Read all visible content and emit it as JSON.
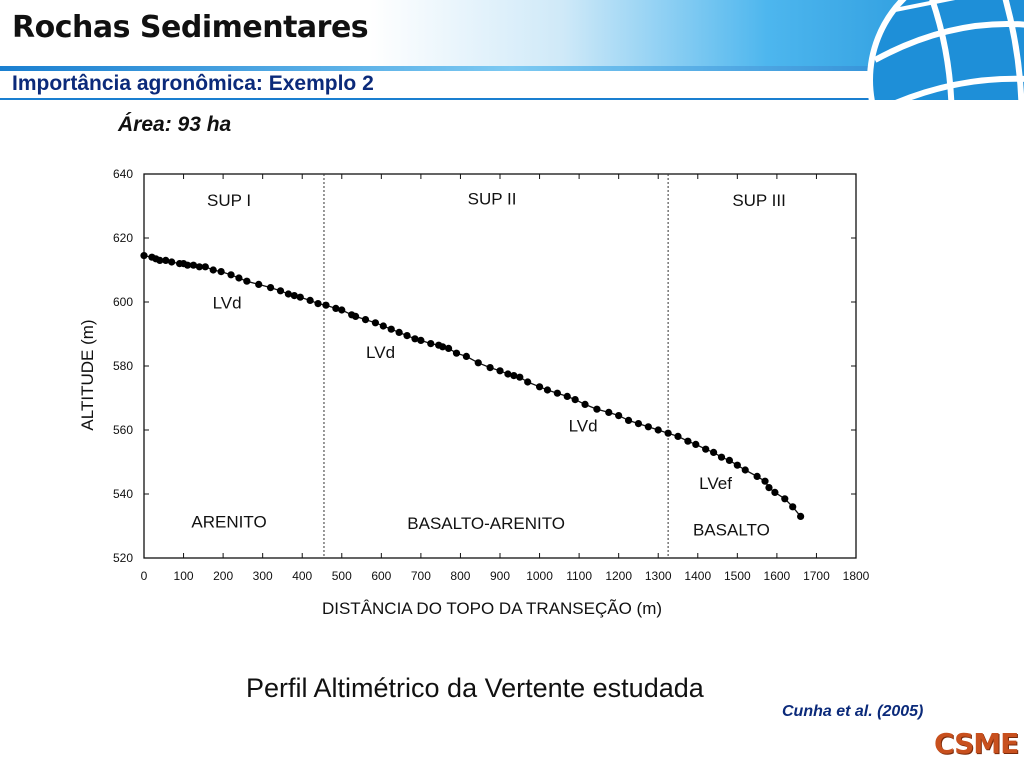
{
  "slide": {
    "title": "Rochas Sedimentares",
    "subtitle": "Importância agronômica: Exemplo 2",
    "area": "Área: 93 ha",
    "caption": "Perfil Altimétrico da Vertente estudada",
    "citation": "Cunha et al. (2005)",
    "logo": "CSME"
  },
  "colors": {
    "subtitle": "#0b2a7a",
    "header_blue": "#29a3e6",
    "logo": "#c8501e",
    "data_points": "#000000"
  },
  "chart_data": {
    "type": "scatter",
    "title": "",
    "xlabel": "DISTÂNCIA DO TOPO DA TRANSEÇÃO (m)",
    "ylabel": "ALTITUDE (m)",
    "xlim": [
      0,
      1800
    ],
    "ylim": [
      520,
      640
    ],
    "xticks": [
      0,
      100,
      200,
      300,
      400,
      500,
      600,
      700,
      800,
      900,
      1000,
      1100,
      1200,
      1300,
      1400,
      1500,
      1600,
      1700,
      1800
    ],
    "yticks": [
      520,
      540,
      560,
      580,
      600,
      620,
      640
    ],
    "grid": false,
    "legend": "none",
    "dividers": [
      455,
      1325
    ],
    "series": [
      {
        "connected": true,
        "x": [
          0,
          20,
          30,
          40,
          55,
          70,
          90,
          100,
          110,
          125,
          140,
          155,
          175,
          195,
          220,
          240,
          260,
          290,
          320,
          345,
          365,
          380,
          395,
          420,
          440,
          460,
          485,
          500,
          525,
          535,
          560,
          585,
          605,
          625,
          645,
          665,
          685,
          700,
          725,
          745,
          755,
          770,
          790,
          815,
          845,
          875,
          900,
          920,
          935,
          950,
          970,
          1000,
          1020,
          1045,
          1070,
          1090,
          1115,
          1145,
          1175,
          1200,
          1225,
          1250,
          1275,
          1300,
          1325,
          1350,
          1375,
          1395,
          1420,
          1440,
          1460,
          1480,
          1500,
          1520,
          1550,
          1570,
          1580,
          1595,
          1620,
          1640,
          1660
        ],
        "y": [
          614.5,
          614,
          613.5,
          613,
          613,
          612.5,
          612,
          612,
          611.5,
          611.5,
          611,
          611,
          610,
          609.5,
          608.5,
          607.5,
          606.5,
          605.5,
          604.5,
          603.5,
          602.5,
          602,
          601.5,
          600.5,
          599.5,
          599,
          598,
          597.5,
          596,
          595.5,
          594.5,
          593.5,
          592.5,
          591.5,
          590.5,
          589.5,
          588.5,
          588,
          587,
          586.5,
          586,
          585.5,
          584,
          583,
          581,
          579.5,
          578.5,
          577.5,
          577,
          576.5,
          575,
          573.5,
          572.5,
          571.5,
          570.5,
          569.5,
          568,
          566.5,
          565.5,
          564.5,
          563,
          562,
          561,
          560,
          559,
          558,
          556.5,
          555.5,
          554,
          553,
          551.5,
          550.5,
          549,
          547.5,
          545.5,
          544,
          542,
          540.5,
          538.5,
          536,
          533
        ]
      }
    ],
    "annotations": [
      {
        "text": "SUP I",
        "x": 215,
        "y": 630
      },
      {
        "text": "SUP II",
        "x": 880,
        "y": 630.5
      },
      {
        "text": "SUP III",
        "x": 1555,
        "y": 630
      },
      {
        "text": "LVd",
        "x": 210,
        "y": 598
      },
      {
        "text": "LVd",
        "x": 598,
        "y": 582.5
      },
      {
        "text": "LVd",
        "x": 1110,
        "y": 559.5
      },
      {
        "text": "LVef",
        "x": 1445,
        "y": 541.5
      },
      {
        "text": "ARENITO",
        "x": 215,
        "y": 529.5
      },
      {
        "text": "BASALTO-ARENITO",
        "x": 865,
        "y": 529
      },
      {
        "text": "BASALTO",
        "x": 1485,
        "y": 527
      }
    ]
  }
}
